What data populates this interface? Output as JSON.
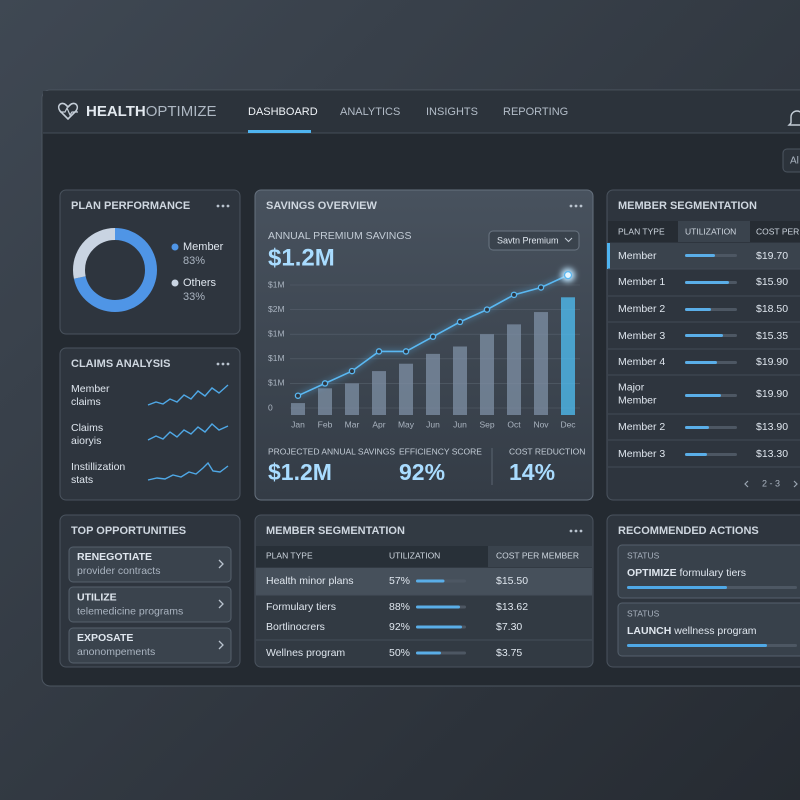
{
  "header": {
    "logo_bold": "HEALTH",
    "logo_light": "OPTIMIZE",
    "nav": [
      "DASHBOARD",
      "ANALYTICS",
      "INSIGHTS",
      "REPORTING"
    ],
    "filter": "Al"
  },
  "chart_data": [
    {
      "type": "pie",
      "title": "PLAN PERFORMANCE",
      "categories": [
        "Member",
        "Others"
      ],
      "values": [
        83,
        33
      ],
      "value_labels": [
        "83%",
        "33%"
      ],
      "colors": [
        "#4f95e6",
        "#c9d4e2"
      ]
    },
    {
      "type": "bar",
      "title": "SAVINGS OVERVIEW",
      "subtitle": "ANNUAL PREMIUM SAVINGS",
      "headline": "$1.2M",
      "dropdown": "Savtn Premium",
      "categories": [
        "Jan",
        "Feb",
        "Mar",
        "Apr",
        "May",
        "Jun",
        "Jun",
        "Sep",
        "Oct",
        "Nov",
        "Dec"
      ],
      "series": [
        {
          "type": "bar",
          "colors": [
            "#7f90a6",
            "#7f90a6",
            "#7f90a6",
            "#7f90a6",
            "#7f90a6",
            "#7f90a6",
            "#7f90a6",
            "#7f90a6",
            "#7f90a6",
            "#7f90a6",
            "#4fc0f5"
          ],
          "values": [
            0.2,
            0.8,
            1.0,
            1.5,
            1.8,
            2.2,
            2.5,
            3.0,
            3.4,
            3.9,
            4.5
          ]
        },
        {
          "type": "line",
          "color": "#5ab8f2",
          "values": [
            0.5,
            1.0,
            1.5,
            2.3,
            2.3,
            2.9,
            3.5,
            4.0,
            4.6,
            4.9,
            5.4
          ]
        }
      ],
      "ylim": [
        0,
        5
      ],
      "yticks": [
        {
          "value": 0,
          "label": "0"
        },
        {
          "value": 1,
          "label": "$1M"
        },
        {
          "value": 2,
          "label": "$1M"
        },
        {
          "value": 3,
          "label": "$1M"
        },
        {
          "value": 4,
          "label": "$2M"
        },
        {
          "value": 5,
          "label": "$1M"
        }
      ],
      "grid": true
    }
  ],
  "savings_stats": [
    {
      "label": "PROJECTED ANNUAL SAVINGS",
      "value": "$1.2M"
    },
    {
      "label": "EFFICIENCY SCORE",
      "value": "92%"
    },
    {
      "label": "COST REDUCTION",
      "value": "14%"
    }
  ],
  "claims_analysis": {
    "title": "CLAIMS ANALYSIS",
    "rows": [
      [
        "Member",
        "claims"
      ],
      [
        "Claims",
        "aioryis"
      ],
      [
        "Instillization",
        "stats"
      ]
    ]
  },
  "top_opportunities": {
    "title": "TOP OPPORTUNITIES",
    "items": [
      {
        "action": "RENEGOTIATE",
        "detail": "provider contracts"
      },
      {
        "action": "UTILIZE",
        "detail": "telemedicine programs"
      },
      {
        "action": "EXPOSATE",
        "detail": "anonompements"
      }
    ]
  },
  "member_segmentation_side": {
    "title": "MEMBER SEGMENTATION",
    "columns": [
      "PLAN TYPE",
      "UTILIZATION",
      "COST PER MEMBER"
    ],
    "rows": [
      [
        "Member",
        "$19.70"
      ],
      [
        "Member 1",
        "$15.90"
      ],
      [
        "Member 2",
        "$18.50"
      ],
      [
        "Member 3",
        "$15.35"
      ],
      [
        "Member 4",
        "$19.90"
      ],
      [
        "Major\nMember",
        "$19.90"
      ],
      [
        "Member 2",
        "$13.90"
      ],
      [
        "Member 3",
        "$13.30"
      ]
    ],
    "pagination": "2 - 3"
  },
  "member_segmentation": {
    "title": "MEMBER SEGMENTATION",
    "columns": [
      "PLAN TYPE",
      "UTILIZATION",
      "COST PER MEMBER"
    ],
    "rows": [
      {
        "plan": "Health minor plans",
        "utilization": 57,
        "utilization_label": "57%",
        "cost": "$15.50"
      },
      {
        "plan": "Formulary tiers",
        "utilization": 88,
        "utilization_label": "88%",
        "cost": "$13.62"
      },
      {
        "plan": "Bortlinocrers",
        "utilization": 92,
        "utilization_label": "92%",
        "cost": "$7.30"
      },
      {
        "plan": "Wellnes program",
        "utilization": 50,
        "utilization_label": "50%",
        "cost": "$3.75"
      }
    ]
  },
  "recommended_actions": {
    "title": "RECOMMENDED ACTIONS",
    "items": [
      {
        "status": "STATUS",
        "action": "OPTIMIZE",
        "detail": "formulary tiers"
      },
      {
        "status": "STATUS",
        "action": "LAUNCH",
        "detail": "wellness program"
      }
    ]
  }
}
